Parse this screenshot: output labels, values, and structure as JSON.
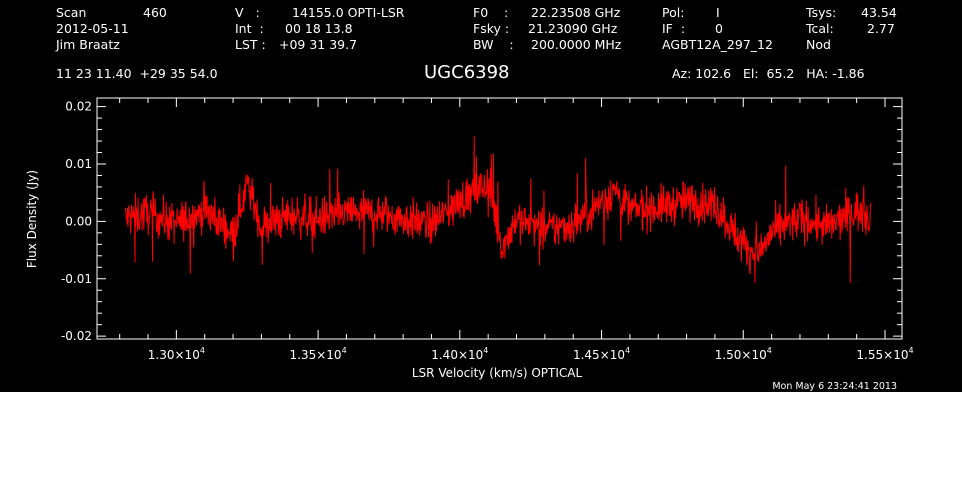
{
  "header": {
    "scan_label": "Scan",
    "scan_value": "460",
    "date": "2012-05-11",
    "observer": "Jim Braatz",
    "v_label": "V   :",
    "v_value": "14155.0 OPTI-LSR",
    "int_label": "Int  :",
    "int_value": "00 18 13.8",
    "lst_label": "LST :",
    "lst_value": "+09 31 39.7",
    "f0_label": "F0    :",
    "f0_value": "22.23508 GHz",
    "fsky_label": "Fsky :",
    "fsky_value": "21.23090 GHz",
    "bw_label": "BW    :",
    "bw_value": "200.0000 MHz",
    "pol_label": "Pol:",
    "pol_value": "I",
    "if_label": "IF  :",
    "if_value": "0",
    "project": "AGBT12A_297_12",
    "tsys_label": "Tsys:",
    "tsys_value": "43.54",
    "tcal_label": "Tcal:",
    "tcal_value": "2.77",
    "mode": "Nod",
    "coords": "11 23 11.40  +29 35 54.0",
    "source": "UGC6398",
    "az_el_ha": "Az: 102.6   El:  65.2   HA: -1.86",
    "timestamp": "Mon May  6 23:24:41 2013"
  },
  "colors": {
    "background": "#000000",
    "axes": "#ffffff",
    "trace": "#ff0000"
  },
  "chart_data": {
    "type": "line",
    "xlabel": "LSR Velocity (km/s) OPTICAL",
    "ylabel": "Flux Density (Jy)",
    "xlim": [
      12720,
      15560
    ],
    "ylim": [
      -0.0205,
      0.0215
    ],
    "x_ticks": [
      13000,
      13500,
      14000,
      14500,
      15000,
      15500
    ],
    "x_tick_labels": [
      {
        "mantissa": "1.30×10",
        "exp": "4"
      },
      {
        "mantissa": "1.35×10",
        "exp": "4"
      },
      {
        "mantissa": "1.40×10",
        "exp": "4"
      },
      {
        "mantissa": "1.45×10",
        "exp": "4"
      },
      {
        "mantissa": "1.50×10",
        "exp": "4"
      },
      {
        "mantissa": "1.55×10",
        "exp": "4"
      }
    ],
    "y_ticks": [
      0.02,
      0.01,
      0.0,
      -0.01,
      -0.02
    ],
    "y_tick_labels": [
      "0.02",
      "0.01",
      "0.00",
      "-0.01",
      "-0.02"
    ],
    "series": [
      {
        "x_start": 12820,
        "x_end": 15450,
        "envelope_x": [
          12820,
          12900,
          13000,
          13100,
          13200,
          13250,
          13300,
          13400,
          13500,
          13600,
          13700,
          13800,
          13900,
          14000,
          14100,
          14150,
          14200,
          14300,
          14400,
          14500,
          14550,
          14600,
          14700,
          14800,
          14900,
          15000,
          15050,
          15100,
          15200,
          15300,
          15400,
          15450
        ],
        "envelope_mid": [
          0.0005,
          0.0015,
          -0.0005,
          0.002,
          -0.002,
          0.0065,
          -0.001,
          0.001,
          0.0005,
          0.0015,
          0.0015,
          0.0005,
          -0.0005,
          0.0035,
          0.0065,
          -0.0045,
          0.0005,
          -0.0015,
          -0.0005,
          0.0035,
          0.0055,
          0.002,
          0.0025,
          0.0035,
          0.003,
          -0.004,
          -0.006,
          -0.002,
          0.0005,
          -0.001,
          0.002,
          0.0005
        ],
        "noise_rms": 0.0035,
        "n_points": 1700
      }
    ]
  }
}
